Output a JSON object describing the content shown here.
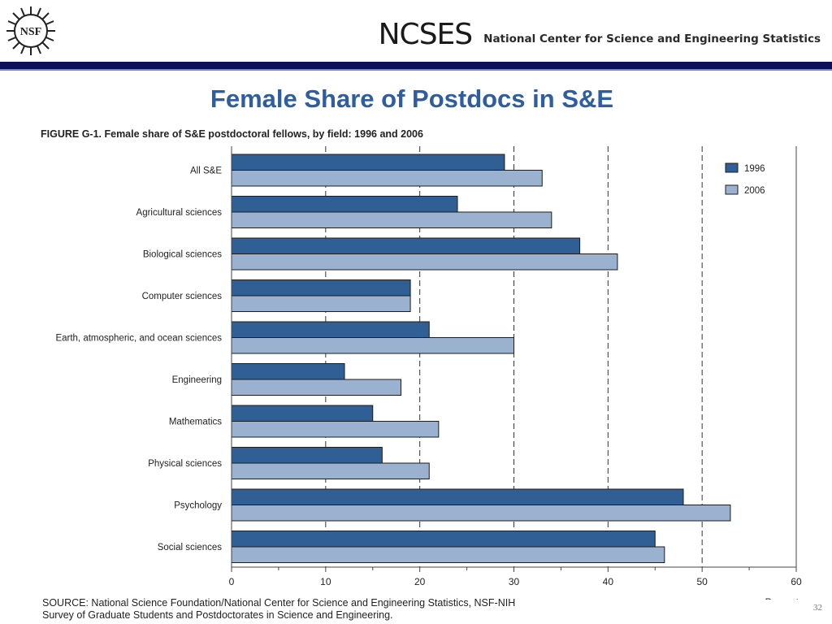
{
  "header": {
    "logo_text": "NSF",
    "ncses_logo": "NCSES",
    "ncses_full": "National Center for Science and Engineering Statistics"
  },
  "title": "Female Share of Postdocs in S&E",
  "figure_caption": "FIGURE G-1. Female share of S&E postdoctoral fellows, by field: 1996 and 2006",
  "source_line1": "SOURCE:  National Science Foundation/National Center for Science and Engineering Statistics, NSF-NIH",
  "source_line2": "Survey of Graduate Students and Postdoctorates in Science and Engineering.",
  "slide_number": "32",
  "colors": {
    "s1996": "#2f5f95",
    "s2006": "#9ab2cf",
    "header_rule": "#0b0f5c",
    "title": "#2e5da0"
  },
  "chart_data": {
    "type": "bar",
    "orientation": "horizontal",
    "categories": [
      "All S&E",
      "Agricultural sciences",
      "Biological sciences",
      "Computer sciences",
      "Earth, atmospheric, and ocean sciences",
      "Engineering",
      "Mathematics",
      "Physical sciences",
      "Psychology",
      "Social sciences"
    ],
    "series": [
      {
        "name": "1996",
        "values": [
          29,
          24,
          37,
          19,
          21,
          12,
          15,
          16,
          48,
          45
        ]
      },
      {
        "name": "2006",
        "values": [
          33,
          34,
          41,
          19,
          30,
          18,
          22,
          21,
          53,
          46
        ]
      }
    ],
    "xlabel": "Percent",
    "xlim": [
      0,
      60
    ],
    "xticks": [
      0,
      10,
      20,
      30,
      40,
      50,
      60
    ],
    "grid": "dashed vertical lines",
    "legend_position": "top-right"
  }
}
